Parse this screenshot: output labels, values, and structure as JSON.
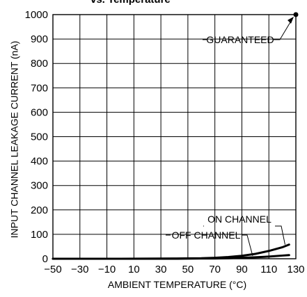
{
  "chart_data": {
    "type": "line",
    "title": "vs. Temperature",
    "xlabel": "AMBIENT TEMPERATURE (°C)",
    "ylabel": "INPUT CHANNEL LEAKAGE CURRENT (nA)",
    "xlim": [
      -50,
      130
    ],
    "ylim": [
      0,
      1000
    ],
    "xticks": [
      "−50",
      "−30",
      "−10",
      "10",
      "30",
      "50",
      "70",
      "90",
      "110",
      "130"
    ],
    "xtick_values": [
      -50,
      -30,
      -10,
      10,
      30,
      50,
      70,
      90,
      110,
      130
    ],
    "yticks": [
      "0",
      "100",
      "200",
      "300",
      "400",
      "500",
      "600",
      "700",
      "800",
      "900",
      "1000"
    ],
    "ytick_values": [
      0,
      100,
      200,
      300,
      400,
      500,
      600,
      700,
      800,
      900,
      1000
    ],
    "grid": true,
    "series": [
      {
        "name": "ON CHANNEL",
        "x": [
          -50,
          0,
          40,
          60,
          70,
          80,
          90,
          100,
          110,
          120,
          125
        ],
        "y": [
          0,
          0,
          1,
          2,
          4,
          7,
          12,
          20,
          32,
          47,
          58
        ]
      },
      {
        "name": "OFF CHANNEL",
        "x": [
          -50,
          0,
          40,
          60,
          70,
          80,
          90,
          100,
          110,
          120,
          125
        ],
        "y": [
          0,
          0,
          0,
          1,
          1,
          2,
          4,
          6,
          9,
          13,
          15
        ]
      }
    ],
    "points": [
      {
        "name": "GUARANTEED",
        "x": 130,
        "y": 1000
      }
    ],
    "annotations": [
      {
        "text": "GUARANTEED",
        "target": "GUARANTEED"
      },
      {
        "text": "ON CHANNEL",
        "target": "ON CHANNEL"
      },
      {
        "text": "OFF CHANNEL",
        "target": "OFF CHANNEL"
      }
    ]
  }
}
